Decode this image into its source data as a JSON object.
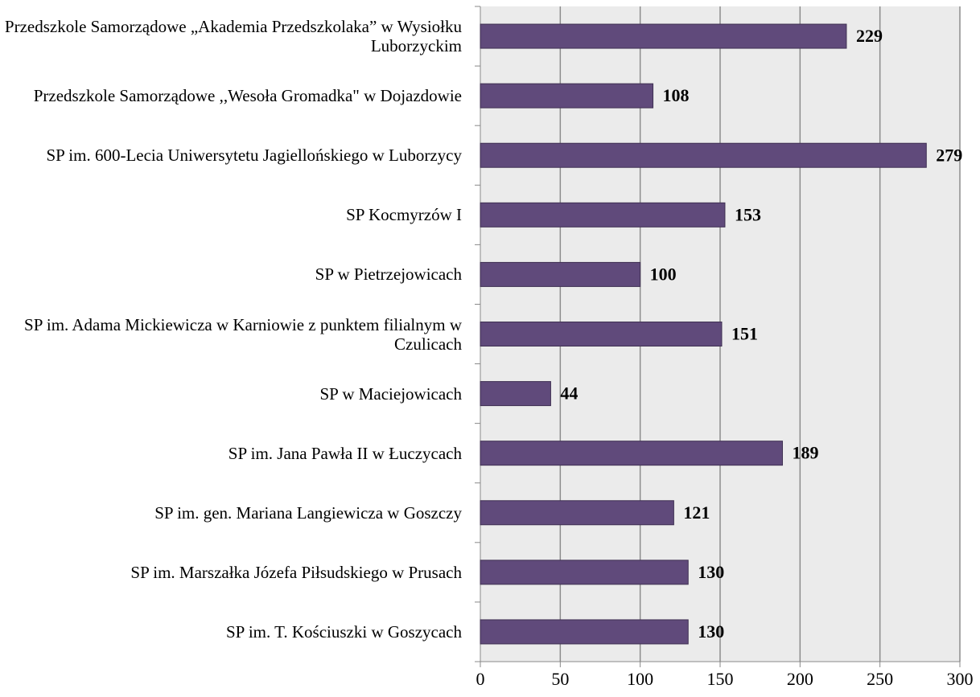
{
  "chart_data": {
    "type": "bar",
    "orientation": "horizontal",
    "categories": [
      "Przedszkole Samorządowe „Akademia Przedszkolaka” w Wysiołku Luborzyckim",
      "Przedszkole Samorządowe ,,Wesoła Gromadka\" w Dojazdowie",
      "SP im. 600-Lecia Uniwersytetu Jagiellońskiego w Luborzycy",
      "SP Kocmyrzów I",
      "SP w Pietrzejowicach",
      "SP im. Adama Mickiewicza w Karniowie z punktem filialnym w Czulicach",
      "SP w Maciejowicach",
      "SP im. Jana Pawła II w Łuczycach",
      "SP im. gen. Mariana Langiewicza w Goszczy",
      "SP im. Marszałka Józefa Piłsudskiego w Prusach",
      "SP im. T. Kościuszki w Goszycach"
    ],
    "values": [
      229,
      108,
      279,
      153,
      100,
      151,
      44,
      189,
      121,
      130,
      130
    ],
    "color": "#604a7b",
    "xlim": [
      0,
      300
    ],
    "xticks": [
      0,
      50,
      100,
      150,
      200,
      250,
      300
    ],
    "grid": true
  }
}
